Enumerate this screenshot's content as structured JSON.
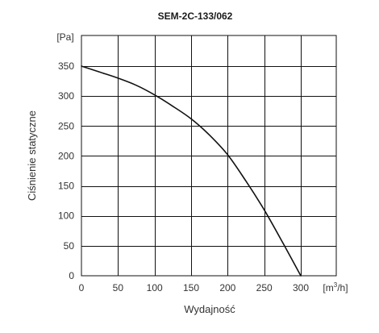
{
  "chart_data": {
    "type": "line",
    "title": "SEM-2C-133/062",
    "xlabel": "Wydajność",
    "ylabel": "Ciśnienie statyczne",
    "x_unit": "[m³/h]",
    "y_unit": "[Pa]",
    "xlim": [
      0,
      300
    ],
    "ylim": [
      0,
      350
    ],
    "x_ticks": [
      "0",
      "50",
      "100",
      "150",
      "200",
      "250",
      "300"
    ],
    "y_ticks": [
      "0",
      "50",
      "100",
      "150",
      "200",
      "250",
      "300",
      "350"
    ],
    "grid": true,
    "series": [
      {
        "x": [
          0,
          25,
          50,
          75,
          100,
          125,
          150,
          175,
          200,
          225,
          250,
          275,
          300
        ],
        "y": [
          350,
          340,
          330,
          318,
          302,
          283,
          262,
          235,
          202,
          158,
          110,
          56,
          0
        ]
      }
    ]
  }
}
